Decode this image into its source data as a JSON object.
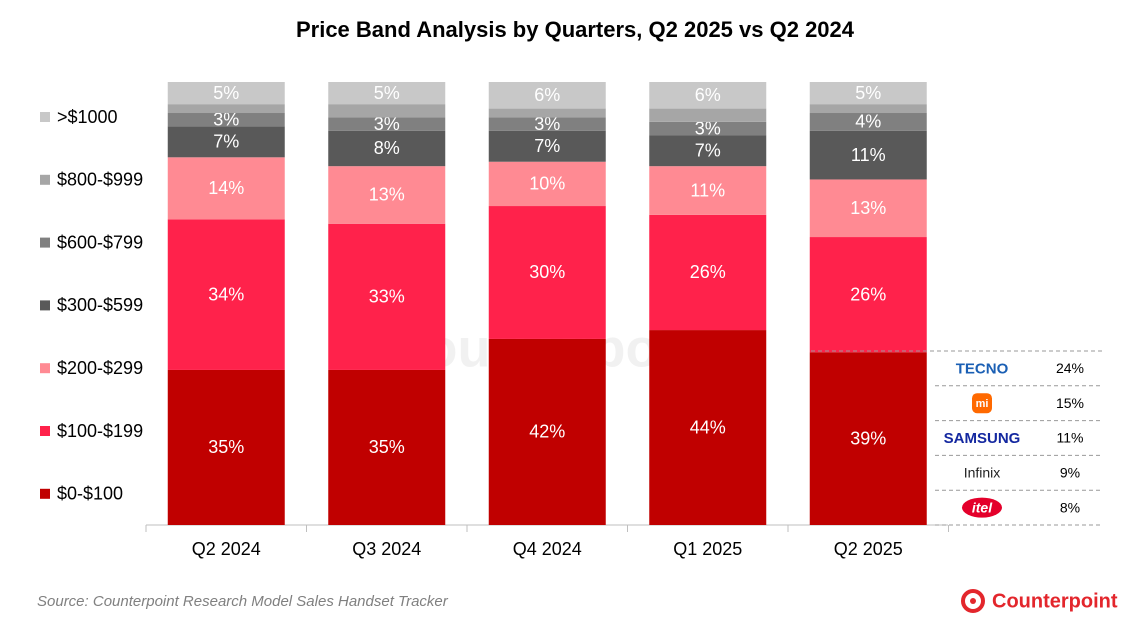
{
  "chart_data": {
    "type": "stacked_bar",
    "title": "Price Band Analysis by Quarters, Q2 2025 vs Q2 2024",
    "categories": [
      "Q2 2024",
      "Q3 2024",
      "Q4 2024",
      "Q1 2025",
      "Q2 2025"
    ],
    "ylim": [
      0,
      100
    ],
    "series": [
      {
        "name": "$0-$100",
        "color": "#c00000",
        "values": [
          35,
          35,
          42,
          44,
          39
        ],
        "value_labels": [
          "35%",
          "35%",
          "42%",
          "44%",
          "39%"
        ]
      },
      {
        "name": "$100-$199",
        "color": "#ff224b",
        "values": [
          34,
          33,
          30,
          26,
          26
        ],
        "value_labels": [
          "34%",
          "33%",
          "30%",
          "26%",
          "26%"
        ]
      },
      {
        "name": "$200-$299",
        "color": "#ff8a93",
        "values": [
          14,
          13,
          10,
          11,
          13
        ],
        "value_labels": [
          "14%",
          "13%",
          "10%",
          "11%",
          "13%"
        ]
      },
      {
        "name": "$300-$599",
        "color": "#595959",
        "values": [
          7,
          8,
          7,
          7,
          11
        ],
        "value_labels": [
          "7%",
          "8%",
          "7%",
          "7%",
          "11%"
        ]
      },
      {
        "name": "$600-$799",
        "color": "#808080",
        "values": [
          3,
          3,
          3,
          3,
          4
        ],
        "value_labels": [
          "3%",
          "3%",
          "3%",
          "3%",
          "4%"
        ]
      },
      {
        "name": "$800-$999",
        "color": "#a6a6a6",
        "values": [
          2,
          3,
          2,
          3,
          2
        ]
      },
      {
        "name": ">$1000",
        "color": "#c8c8c8",
        "values": [
          5,
          5,
          6,
          6,
          5
        ],
        "value_labels": [
          "5%",
          "5%",
          "6%",
          "6%",
          "5%"
        ]
      }
    ]
  },
  "brand_share": {
    "brands": [
      "TECNO",
      "mi",
      "SAMSUNG",
      "Infinix",
      "itel"
    ],
    "shares": [
      "24%",
      "15%",
      "11%",
      "9%",
      "8%"
    ]
  },
  "source": "Source: Counterpoint Research Model Sales Handset Tracker",
  "logo": "Counterpoint"
}
